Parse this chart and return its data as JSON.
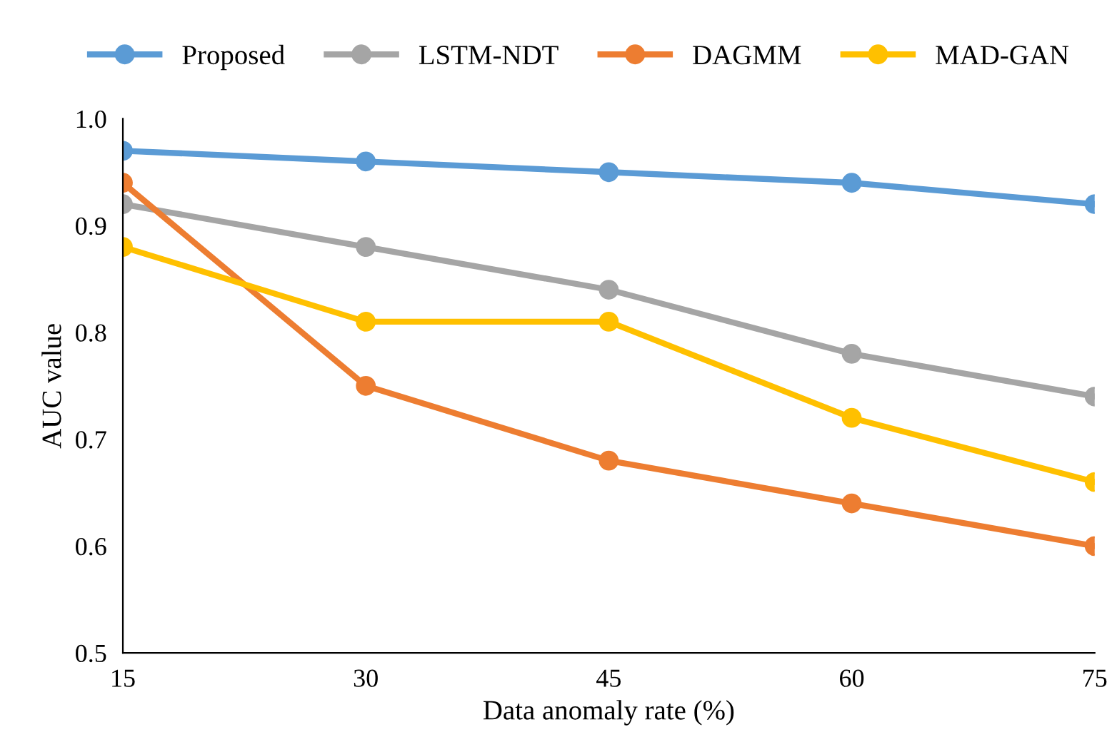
{
  "chart_data": {
    "type": "line",
    "xlabel": "Data anomaly rate (%)",
    "ylabel": "AUC value",
    "x": [
      15,
      30,
      45,
      60,
      75
    ],
    "xlim": [
      15,
      75
    ],
    "xticks": [
      15,
      30,
      45,
      60,
      75
    ],
    "ylim": [
      0.5,
      1.0
    ],
    "yticks": [
      {
        "value": 0.5,
        "label": "0.5"
      },
      {
        "value": 0.6,
        "label": "0.6"
      },
      {
        "value": 0.7,
        "label": "0.7"
      },
      {
        "value": 0.8,
        "label": "0.8"
      },
      {
        "value": 0.9,
        "label": "0.9"
      },
      {
        "value": 1.0,
        "label": "1.0"
      }
    ],
    "grid": false,
    "legend": "top",
    "marker": "circle",
    "line_style": "solid",
    "series": [
      {
        "name": "Proposed",
        "color": "#5b9bd5",
        "values": [
          0.97,
          0.96,
          0.95,
          0.94,
          0.92
        ]
      },
      {
        "name": "LSTM-NDT",
        "color": "#a5a5a5",
        "values": [
          0.92,
          0.88,
          0.84,
          0.78,
          0.74
        ]
      },
      {
        "name": "DAGMM",
        "color": "#ed7d31",
        "values": [
          0.94,
          0.75,
          0.68,
          0.64,
          0.6
        ]
      },
      {
        "name": "MAD-GAN",
        "color": "#ffc000",
        "values": [
          0.88,
          0.81,
          0.81,
          0.72,
          0.66
        ]
      }
    ]
  }
}
